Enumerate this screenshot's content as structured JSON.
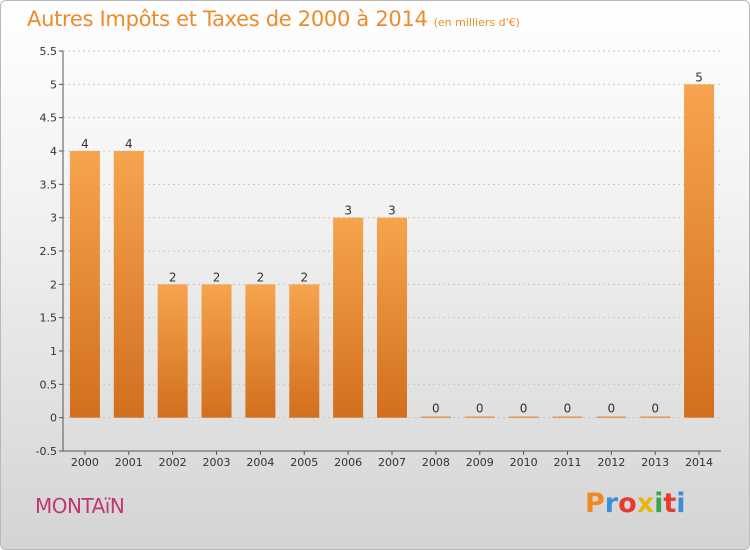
{
  "title": "Autres Impôts et Taxes de 2000 à 2014",
  "unit_note": "(en milliers d'€)",
  "commune": "MONTAïN",
  "logo": {
    "text": "Proxiti",
    "letter_colors": [
      "#f08a1e",
      "#3a8fd6",
      "#e63b2e",
      "#e6b80f",
      "#3aa64a",
      "#e63b2e",
      "#3a8fd6"
    ]
  },
  "colors": {
    "bar_light": "#f7a44f",
    "bar_dark": "#d26f1e",
    "title": "#ef8a2c",
    "commune": "#c03872"
  },
  "chart_data": {
    "type": "bar",
    "categories": [
      "2000",
      "2001",
      "2002",
      "2003",
      "2004",
      "2005",
      "2006",
      "2007",
      "2008",
      "2009",
      "2010",
      "2011",
      "2012",
      "2013",
      "2014"
    ],
    "values": [
      4,
      4,
      2,
      2,
      2,
      2,
      3,
      3,
      0,
      0,
      0,
      0,
      0,
      0,
      5
    ],
    "data_labels": [
      "4",
      "4",
      "2",
      "2",
      "2",
      "2",
      "3",
      "3",
      "0",
      "0",
      "0",
      "0",
      "0",
      "0",
      "5"
    ],
    "ylim": [
      -0.5,
      5.5
    ],
    "yticks": [
      "-0.5",
      "0",
      "0.5",
      "1",
      "1.5",
      "2",
      "2.5",
      "3",
      "3.5",
      "4",
      "4.5",
      "5",
      "5.5"
    ],
    "ytick_values": [
      -0.5,
      0,
      0.5,
      1,
      1.5,
      2,
      2.5,
      3,
      3.5,
      4,
      4.5,
      5,
      5.5
    ],
    "grid": "horizontal dashed",
    "xlabel": "",
    "ylabel": ""
  }
}
